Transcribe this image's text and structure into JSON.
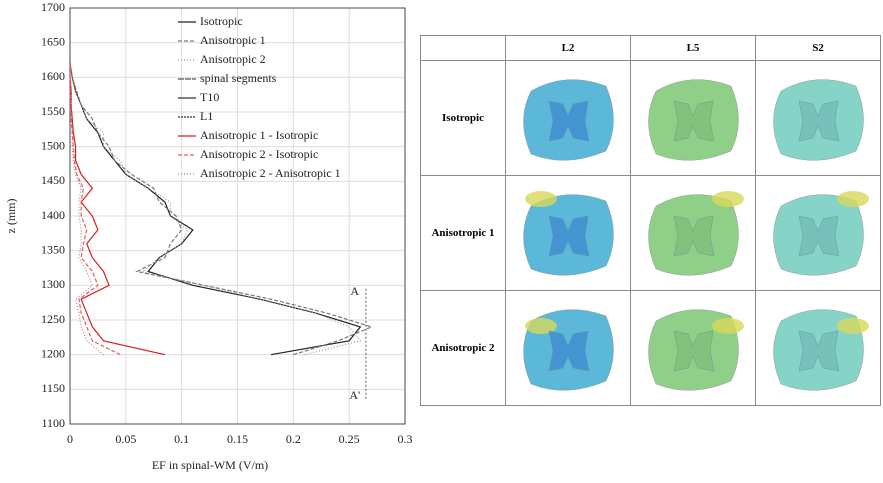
{
  "chart_data": {
    "type": "line",
    "x_label": "EF in spinal-WM (V/m)",
    "y_label": "z (mm)",
    "xlim": [
      0,
      0.3
    ],
    "xticks": [
      0,
      0.05,
      0.1,
      0.15,
      0.2,
      0.25,
      0.3
    ],
    "ylim": [
      1100,
      1700
    ],
    "yticks": [
      1100,
      1150,
      1200,
      1250,
      1300,
      1350,
      1400,
      1450,
      1500,
      1550,
      1600,
      1650,
      1700
    ],
    "grid": true,
    "legend": "upper right",
    "y": [
      1200,
      1220,
      1240,
      1260,
      1280,
      1300,
      1320,
      1340,
      1360,
      1380,
      1400,
      1420,
      1440,
      1460,
      1480,
      1500,
      1520,
      1540,
      1560,
      1580,
      1600,
      1620
    ],
    "series": [
      {
        "name": "Isotropic",
        "color": "#222222",
        "dash": "none",
        "values": [
          0.18,
          0.25,
          0.26,
          0.22,
          0.17,
          0.11,
          0.07,
          0.08,
          0.1,
          0.11,
          0.09,
          0.085,
          0.07,
          0.05,
          0.04,
          0.03,
          0.025,
          0.015,
          0.01,
          0.005,
          0.002,
          0
        ]
      },
      {
        "name": "Anisotropic 1",
        "color": "#777777",
        "dash": "4 2",
        "values": [
          0.2,
          0.24,
          0.27,
          0.23,
          0.18,
          0.12,
          0.06,
          0.085,
          0.09,
          0.1,
          0.095,
          0.08,
          0.075,
          0.055,
          0.04,
          0.035,
          0.025,
          0.02,
          0.01,
          0.006,
          0.002,
          0
        ]
      },
      {
        "name": "Anisotropic 2",
        "color": "#999999",
        "dash": "1 2",
        "values": [
          0.21,
          0.26,
          0.25,
          0.22,
          0.17,
          0.12,
          0.065,
          0.08,
          0.1,
          0.105,
          0.09,
          0.09,
          0.07,
          0.05,
          0.045,
          0.03,
          0.03,
          0.015,
          0.01,
          0.005,
          0.002,
          0
        ]
      },
      {
        "name": "Anisotropic 1 - Isotropic",
        "color": "#d62020",
        "dash": "none",
        "values": [
          0.085,
          0.03,
          0.02,
          0.015,
          0.01,
          0.035,
          0.03,
          0.02,
          0.015,
          0.025,
          0.02,
          0.01,
          0.02,
          0.01,
          0.005,
          0.005,
          0.003,
          0.002,
          0.001,
          0.001,
          0,
          0
        ]
      },
      {
        "name": "Anisotropic 2 - Isotropic",
        "color": "#e06060",
        "dash": "4 2",
        "values": [
          0.045,
          0.02,
          0.015,
          0.01,
          0.008,
          0.025,
          0.02,
          0.01,
          0.012,
          0.015,
          0.01,
          0.01,
          0.012,
          0.006,
          0.004,
          0.003,
          0.002,
          0.001,
          0.001,
          0,
          0,
          0
        ]
      },
      {
        "name": "Anisotropic 2 - Anisotropic 1",
        "color": "#c08080",
        "dash": "1 2",
        "values": [
          0.03,
          0.015,
          0.01,
          0.008,
          0.005,
          0.02,
          0.015,
          0.008,
          0.01,
          0.01,
          0.008,
          0.008,
          0.01,
          0.005,
          0.003,
          0.002,
          0.002,
          0.001,
          0,
          0,
          0,
          0
        ]
      }
    ],
    "legend_only": [
      {
        "name": "spinal segments",
        "color": "#555555",
        "dash": "6 1"
      },
      {
        "name": "T10",
        "color": "#333333",
        "dash": "none"
      },
      {
        "name": "L1",
        "color": "#333333",
        "dash": "2 1"
      }
    ],
    "annotations": [
      {
        "text": "A",
        "x": 0.255,
        "y": 1290
      },
      {
        "text": "A'",
        "x": 0.255,
        "y": 1140
      }
    ]
  },
  "table": {
    "columns": [
      "L2",
      "L5",
      "S2"
    ],
    "rows": [
      "Isotropic",
      "Anisotropic 1",
      "Anisotropic 2"
    ]
  }
}
